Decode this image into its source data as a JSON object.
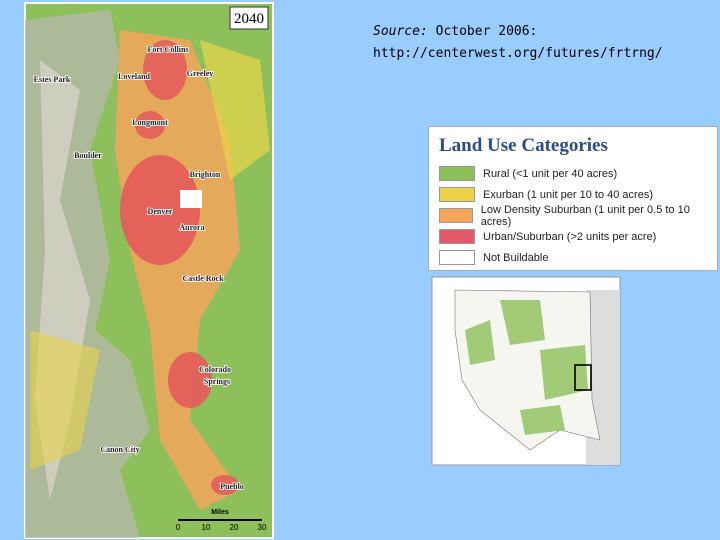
{
  "map_label": "2040",
  "cities": [
    "Fort Collins",
    "Greeley",
    "Estes Park",
    "Loveland",
    "Longmont",
    "Boulder",
    "Brighton",
    "Denver",
    "Aurora",
    "Castle Rock",
    "Colorado",
    "Springs",
    "Canon City",
    "Pueblo"
  ],
  "scale": {
    "title": "Miles",
    "ticks": [
      "0",
      "10",
      "20",
      "30"
    ]
  },
  "source": {
    "label": "Source:",
    "date": "October 2006:",
    "url": "http://centerwest.org/futures/frtrng/"
  },
  "legend": {
    "title": "Land Use Categories",
    "items": [
      "Rural (<1 unit per 40 acres)",
      "Exurban (1 unit per 10 to 40 acres)",
      "Low Density Suburban (1 unit per 0.5 to 10 acres)",
      "Urban/Suburban (>2 units per acre)",
      "Not Buildable"
    ]
  }
}
